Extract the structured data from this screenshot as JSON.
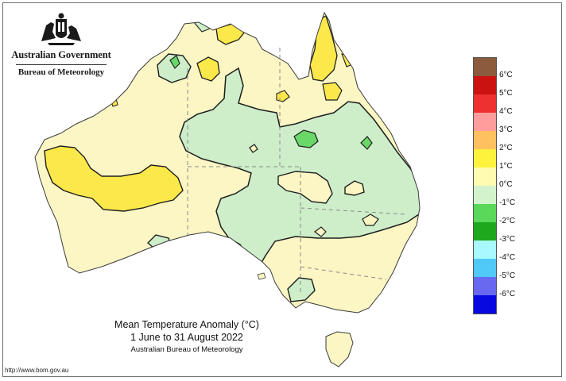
{
  "header": {
    "line1": "Australian Government",
    "line2": "Bureau of Meteorology"
  },
  "caption": {
    "title": "Mean Temperature Anomaly (°C)",
    "period": "1 June to 31 August 2022",
    "source": "Australian Bureau of Meteorology"
  },
  "footer": {
    "url": "http://www.bom.gov.au"
  },
  "legend": {
    "swatch_colors": [
      "#8c5a3c",
      "#cc1111",
      "#ee3030",
      "#ff9c9c",
      "#ffc060",
      "#fff23c",
      "#fffbb0",
      "#d3f3cc",
      "#5ad85a",
      "#1ea81e",
      "#a8f8ff",
      "#50c8f8",
      "#6868f0",
      "#0808e0"
    ],
    "tick_labels": [
      "6°C",
      "5°C",
      "4°C",
      "3°C",
      "2°C",
      "1°C",
      "0°C",
      "-1°C",
      "-2°C",
      "-3°C",
      "-4°C",
      "-5°C",
      "-6°C"
    ]
  },
  "map_colors": {
    "ocean": "#ffffff",
    "anomaly_0_to_1": "#fbf6c4",
    "anomaly_1_to_2": "#fbe84a",
    "anomaly_minus1_to_0": "#cdeec9",
    "anomaly_minus2_to_minus1": "#68d868",
    "coast": "#3a3a3a",
    "border": "#8a8a8a"
  }
}
